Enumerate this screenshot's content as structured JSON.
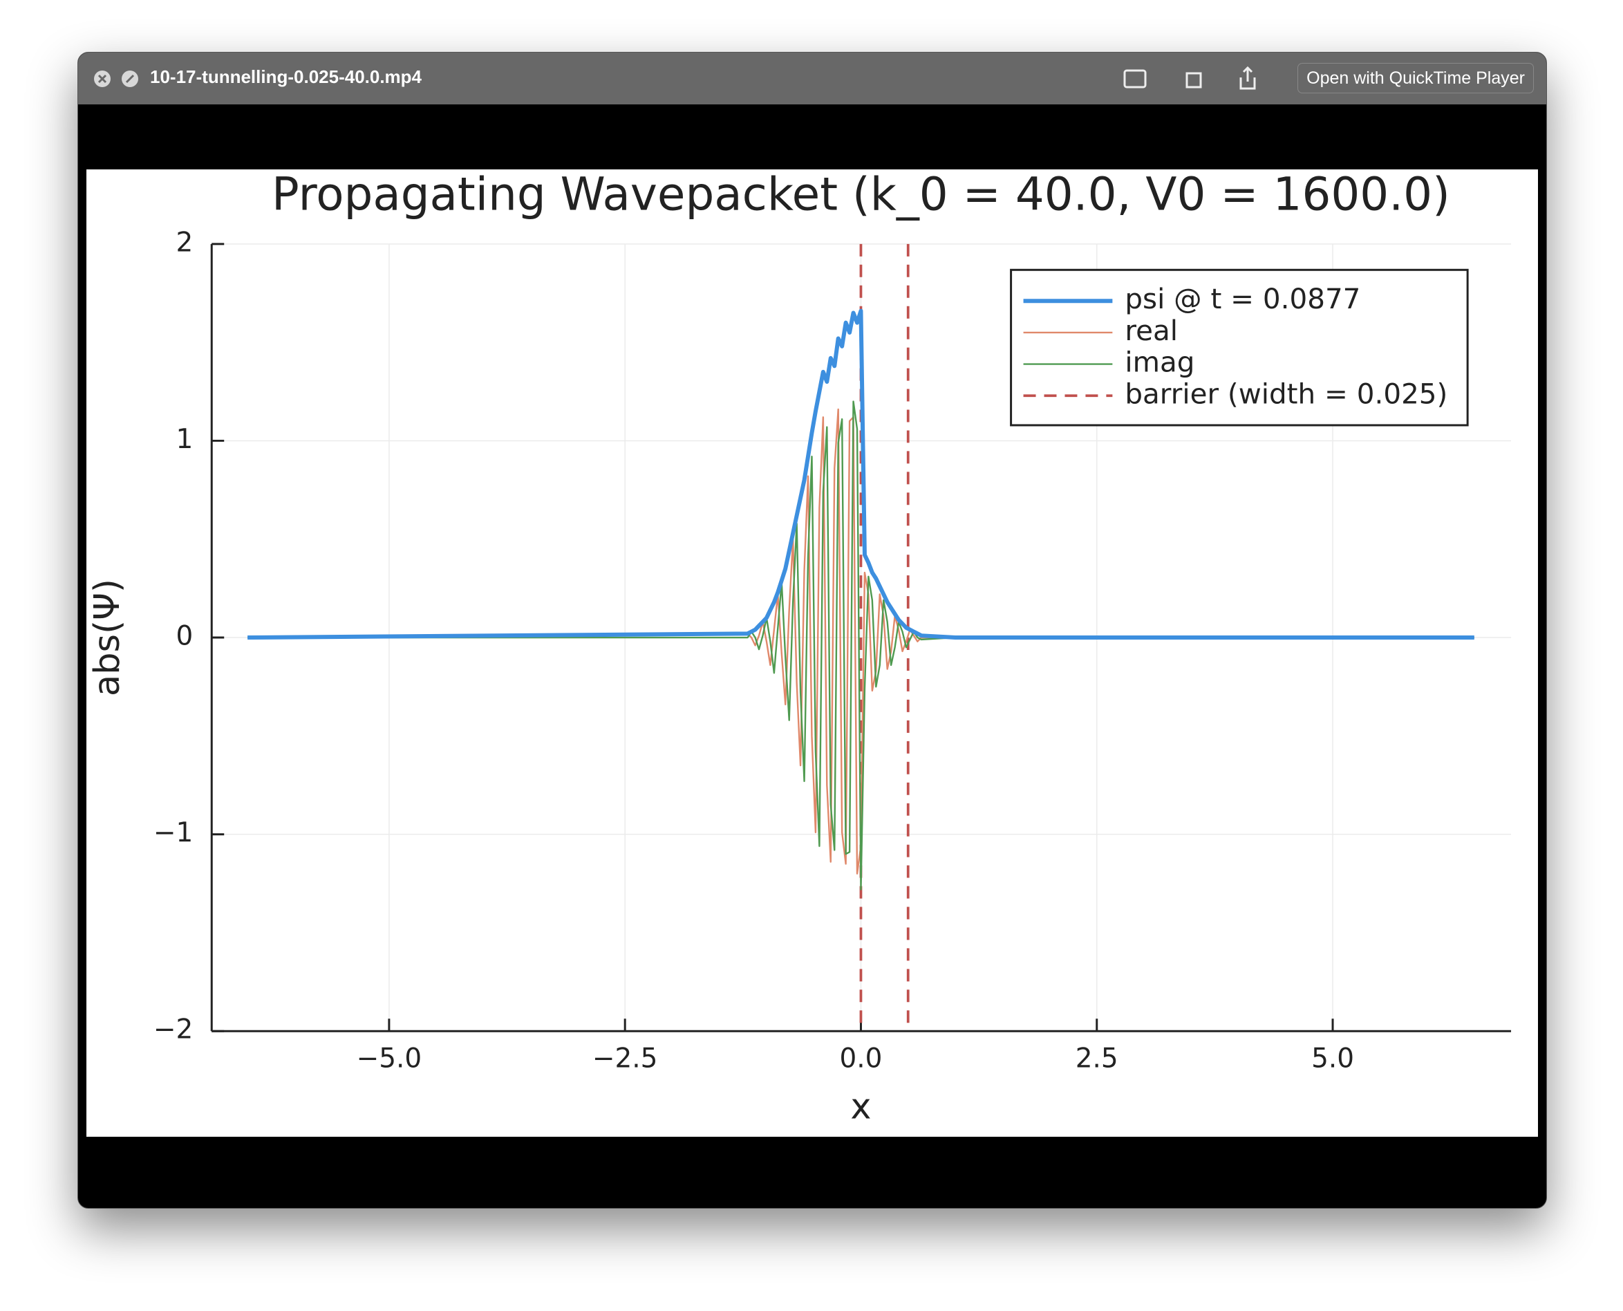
{
  "window": {
    "title": "10-17-tunnelling-0.025-40.0.mp4",
    "open_button": "Open with QuickTime Player"
  },
  "chart_data": {
    "type": "line",
    "title": "Propagating Wavepacket (k_0 = 40.0, V0 = 1600.0)",
    "x_label": "x",
    "y_label": "abs(Ψ)",
    "x": [
      -6.5,
      -1.2,
      -1.16,
      -1.12,
      -1.08,
      -1.04,
      -1.0,
      -0.96,
      -0.92,
      -0.88,
      -0.84,
      -0.8,
      -0.76,
      -0.72,
      -0.68,
      -0.64,
      -0.6,
      -0.56,
      -0.52,
      -0.48,
      -0.44,
      -0.4,
      -0.36,
      -0.32,
      -0.28,
      -0.24,
      -0.2,
      -0.16,
      -0.12,
      -0.08,
      -0.04,
      0.0,
      0.04,
      0.08,
      0.12,
      0.16,
      0.2,
      0.24,
      0.28,
      0.32,
      0.36,
      0.4,
      0.44,
      0.48,
      0.52,
      0.56,
      0.6,
      0.64,
      1.0,
      6.5
    ],
    "series": [
      {
        "name": "psi @ t = 0.0877",
        "color": "#3d8fdf",
        "values": [
          0,
          0.02,
          0.03,
          0.04,
          0.06,
          0.08,
          0.1,
          0.14,
          0.18,
          0.23,
          0.29,
          0.35,
          0.44,
          0.53,
          0.62,
          0.71,
          0.8,
          0.92,
          1.04,
          1.15,
          1.25,
          1.35,
          1.3,
          1.42,
          1.38,
          1.52,
          1.48,
          1.6,
          1.55,
          1.65,
          1.6,
          1.66,
          0.42,
          0.38,
          0.33,
          0.3,
          0.26,
          0.22,
          0.18,
          0.15,
          0.12,
          0.09,
          0.07,
          0.05,
          0.04,
          0.03,
          0.02,
          0.01,
          0,
          0
        ]
      },
      {
        "name": "real",
        "color": "#e0886a",
        "values": [
          0,
          0.02,
          0,
          -0.04,
          0.01,
          0.08,
          -0.02,
          -0.14,
          0.04,
          0.22,
          -0.08,
          -0.34,
          0.14,
          0.5,
          -0.23,
          -0.65,
          0.34,
          0.82,
          -0.5,
          -0.99,
          0.66,
          1.12,
          -0.75,
          -1.14,
          0.86,
          1.16,
          -0.99,
          -1.15,
          1.1,
          1.12,
          -1.2,
          -1.06,
          0.33,
          0.22,
          -0.27,
          -0.17,
          0.22,
          0.11,
          -0.16,
          -0.07,
          0.11,
          0.04,
          -0.07,
          -0.02,
          0.04,
          0.01,
          -0.02,
          0,
          0,
          0
        ]
      },
      {
        "name": "imag",
        "color": "#4f9a50",
        "values": [
          0,
          0,
          0.03,
          0,
          -0.06,
          0.01,
          0.1,
          -0.02,
          -0.18,
          0.05,
          0.28,
          -0.1,
          -0.42,
          0.18,
          0.58,
          -0.28,
          -0.73,
          0.41,
          0.92,
          -0.58,
          -1.06,
          0.74,
          1.07,
          -0.85,
          -1.08,
          0.99,
          1.11,
          -1.1,
          -1.09,
          1.2,
          1.06,
          -1.28,
          -0.26,
          0.31,
          0.19,
          -0.25,
          -0.14,
          0.19,
          0.08,
          -0.14,
          -0.05,
          0.08,
          0.03,
          -0.05,
          -0.01,
          0.03,
          0,
          -0.01,
          0,
          0
        ]
      }
    ],
    "barrier": {
      "name": "barrier (width = 0.025)",
      "color": "#c0504d",
      "x": [
        0,
        0.5
      ]
    },
    "xlim": [
      -6.88,
      6.89
    ],
    "ylim": [
      -2,
      2
    ],
    "xticks": [
      {
        "value": -5,
        "label": "−5.0"
      },
      {
        "value": -2.5,
        "label": "−2.5"
      },
      {
        "value": 0,
        "label": "0.0"
      },
      {
        "value": 2.5,
        "label": "2.5"
      },
      {
        "value": 5,
        "label": "5.0"
      }
    ],
    "yticks": [
      {
        "value": -2,
        "label": "−2"
      },
      {
        "value": -1,
        "label": "−1"
      },
      0,
      1,
      2
    ],
    "grid": true,
    "legend": "upper right"
  }
}
